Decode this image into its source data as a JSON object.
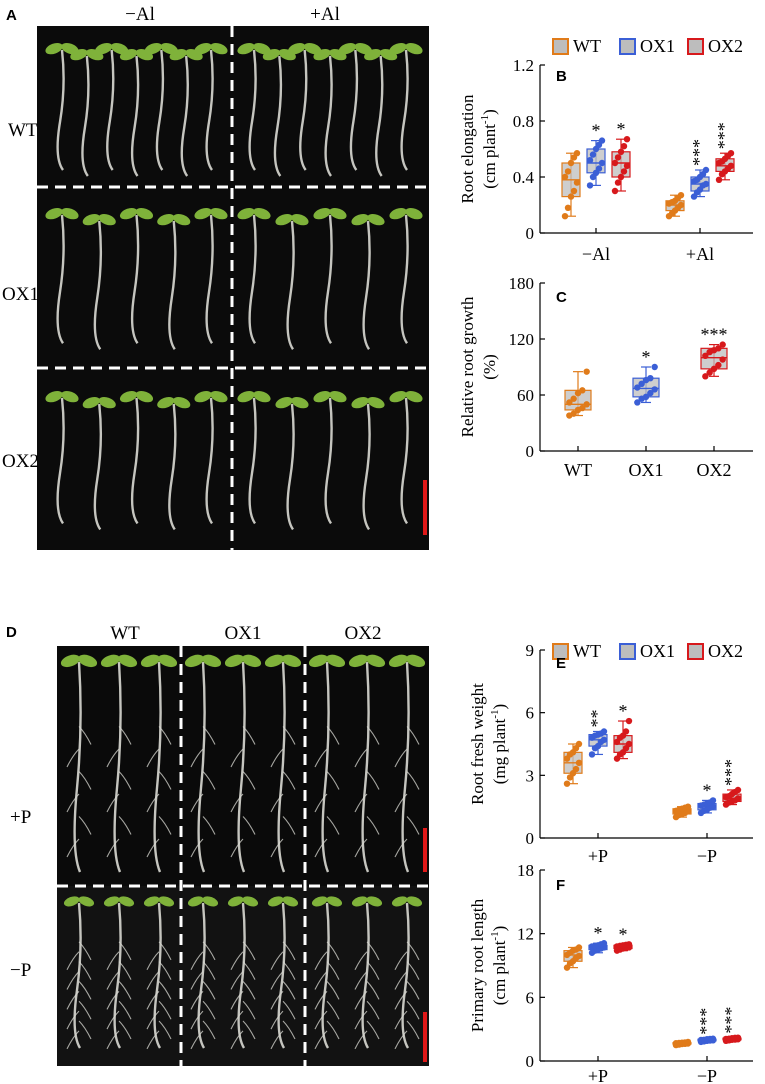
{
  "figure": {
    "panel_letters": {
      "A": "A",
      "D": "D"
    },
    "photo_A": {
      "column_labels": [
        "−Al",
        "+Al"
      ],
      "row_labels": [
        "WT",
        "OX1",
        "OX2"
      ]
    },
    "photo_D": {
      "column_labels": [
        "WT",
        "OX1",
        "OX2"
      ],
      "row_labels": [
        "+P",
        "−P"
      ]
    },
    "legend": {
      "entries": [
        {
          "name": "WT",
          "color": "#e07b1a"
        },
        {
          "name": "OX1",
          "color": "#3b5fd6"
        },
        {
          "name": "OX2",
          "color": "#d7191c"
        }
      ]
    },
    "colors": {
      "photo_bg": "#0b0b0b",
      "seedling_leaf": "#7fb23a",
      "root": "#d9d9d3",
      "scale_bar": "#e01818",
      "box_fill": "#bdbdbd"
    }
  },
  "chart_data": [
    {
      "id": "B",
      "type": "box",
      "letter": "B",
      "ylabel_lines": [
        "Root elongation",
        "(cm plant",
        "-1",
        ")"
      ],
      "ylim": [
        0,
        1.2
      ],
      "yticks": [
        "0",
        "0.4",
        "0.8",
        "1.2"
      ],
      "yticks_values": [
        0,
        0.4,
        0.8,
        1.2
      ],
      "categories": [
        "−Al",
        "+Al"
      ],
      "series": [
        {
          "name": "WT",
          "groups": [
            {
              "min": 0.12,
              "q1": 0.26,
              "med": 0.38,
              "q3": 0.5,
              "max": 0.57,
              "points": [
                0.12,
                0.18,
                0.26,
                0.3,
                0.36,
                0.4,
                0.44,
                0.5,
                0.54,
                0.57
              ],
              "sig": ""
            },
            {
              "min": 0.12,
              "q1": 0.16,
              "med": 0.2,
              "q3": 0.23,
              "max": 0.27,
              "points": [
                0.12,
                0.14,
                0.16,
                0.18,
                0.2,
                0.21,
                0.22,
                0.23,
                0.25,
                0.27
              ],
              "sig": ""
            }
          ]
        },
        {
          "name": "OX1",
          "groups": [
            {
              "min": 0.34,
              "q1": 0.43,
              "med": 0.5,
              "q3": 0.6,
              "max": 0.66,
              "points": [
                0.34,
                0.4,
                0.43,
                0.46,
                0.5,
                0.52,
                0.56,
                0.6,
                0.63,
                0.66
              ],
              "sig": "*"
            },
            {
              "min": 0.26,
              "q1": 0.3,
              "med": 0.35,
              "q3": 0.4,
              "max": 0.45,
              "points": [
                0.26,
                0.29,
                0.31,
                0.34,
                0.35,
                0.37,
                0.38,
                0.4,
                0.42,
                0.45
              ],
              "sig": "***"
            }
          ]
        },
        {
          "name": "OX2",
          "groups": [
            {
              "min": 0.3,
              "q1": 0.4,
              "med": 0.5,
              "q3": 0.58,
              "max": 0.67,
              "points": [
                0.3,
                0.36,
                0.4,
                0.44,
                0.48,
                0.5,
                0.54,
                0.58,
                0.62,
                0.67
              ],
              "sig": "*"
            },
            {
              "min": 0.38,
              "q1": 0.44,
              "med": 0.48,
              "q3": 0.53,
              "max": 0.57,
              "points": [
                0.38,
                0.42,
                0.44,
                0.46,
                0.48,
                0.5,
                0.51,
                0.53,
                0.55,
                0.57
              ],
              "sig": "***"
            }
          ]
        }
      ]
    },
    {
      "id": "C",
      "type": "box",
      "letter": "C",
      "ylabel_lines": [
        "Relative root growth",
        "(%)"
      ],
      "ylim": [
        0,
        180
      ],
      "yticks": [
        "0",
        "60",
        "120",
        "180"
      ],
      "yticks_values": [
        0,
        60,
        120,
        180
      ],
      "categories": [
        "WT",
        "OX1",
        "OX2"
      ],
      "single_series_per_category": true,
      "series": [
        {
          "name": "WT",
          "groups": [
            {
              "min": 38,
              "q1": 44,
              "med": 50,
              "q3": 65,
              "max": 85,
              "points": [
                38,
                40,
                44,
                46,
                50,
                52,
                56,
                62,
                65,
                85
              ],
              "sig": ""
            }
          ]
        },
        {
          "name": "OX1",
          "groups": [
            {
              "min": 52,
              "q1": 58,
              "med": 67,
              "q3": 78,
              "max": 90,
              "points": [
                52,
                56,
                58,
                62,
                66,
                68,
                72,
                76,
                78,
                90
              ],
              "sig": "*"
            }
          ]
        },
        {
          "name": "OX2",
          "groups": [
            {
              "min": 80,
              "q1": 88,
              "med": 100,
              "q3": 110,
              "max": 114,
              "points": [
                80,
                84,
                88,
                92,
                98,
                102,
                106,
                108,
                110,
                114
              ],
              "sig": "***"
            }
          ]
        }
      ]
    },
    {
      "id": "E",
      "type": "box",
      "letter": "E",
      "ylabel_lines": [
        "Root fresh weight",
        "(mg plant",
        "-1",
        ")"
      ],
      "ylim": [
        0,
        9
      ],
      "yticks": [
        "0",
        "3",
        "6",
        "9"
      ],
      "yticks_values": [
        0,
        3,
        6,
        9
      ],
      "categories": [
        "+P",
        "−P"
      ],
      "series": [
        {
          "name": "WT",
          "groups": [
            {
              "min": 2.6,
              "q1": 3.1,
              "med": 3.6,
              "q3": 4.1,
              "max": 4.5,
              "points": [
                2.6,
                2.9,
                3.1,
                3.3,
                3.6,
                3.8,
                4.0,
                4.1,
                4.3,
                4.5
              ],
              "sig": ""
            },
            {
              "min": 1.0,
              "q1": 1.15,
              "med": 1.3,
              "q3": 1.4,
              "max": 1.5,
              "points": [
                1.0,
                1.1,
                1.15,
                1.2,
                1.3,
                1.3,
                1.35,
                1.4,
                1.45,
                1.5
              ],
              "sig": ""
            }
          ]
        },
        {
          "name": "OX1",
          "groups": [
            {
              "min": 4.0,
              "q1": 4.4,
              "med": 4.7,
              "q3": 4.95,
              "max": 5.1,
              "points": [
                4.0,
                4.3,
                4.4,
                4.6,
                4.7,
                4.8,
                4.9,
                4.95,
                5.0,
                5.1
              ],
              "sig": "**"
            },
            {
              "min": 1.2,
              "q1": 1.35,
              "med": 1.5,
              "q3": 1.65,
              "max": 1.8,
              "points": [
                1.2,
                1.3,
                1.35,
                1.45,
                1.5,
                1.55,
                1.6,
                1.65,
                1.7,
                1.8
              ],
              "sig": "*"
            }
          ]
        },
        {
          "name": "OX2",
          "groups": [
            {
              "min": 3.8,
              "q1": 4.1,
              "med": 4.5,
              "q3": 4.9,
              "max": 5.6,
              "points": [
                3.8,
                4.0,
                4.1,
                4.3,
                4.5,
                4.6,
                4.8,
                4.9,
                5.1,
                5.6
              ],
              "sig": "*"
            },
            {
              "min": 1.6,
              "q1": 1.75,
              "med": 1.9,
              "q3": 2.1,
              "max": 2.3,
              "points": [
                1.6,
                1.7,
                1.75,
                1.8,
                1.9,
                1.95,
                2.0,
                2.1,
                2.2,
                2.3
              ],
              "sig": "***"
            }
          ]
        }
      ]
    },
    {
      "id": "F",
      "type": "box",
      "letter": "F",
      "ylabel_lines": [
        "Primary root length",
        "(cm plant",
        "-1",
        ")"
      ],
      "ylim": [
        0,
        18
      ],
      "yticks": [
        "0",
        "6",
        "12",
        "18"
      ],
      "yticks_values": [
        0,
        6,
        12,
        18
      ],
      "categories": [
        "+P",
        "−P"
      ],
      "series": [
        {
          "name": "WT",
          "groups": [
            {
              "min": 8.8,
              "q1": 9.4,
              "med": 10.0,
              "q3": 10.4,
              "max": 10.7,
              "points": [
                8.8,
                9.2,
                9.4,
                9.7,
                9.9,
                10.0,
                10.2,
                10.4,
                10.5,
                10.7
              ],
              "sig": ""
            },
            {
              "min": 1.5,
              "q1": 1.6,
              "med": 1.65,
              "q3": 1.72,
              "max": 1.8,
              "points": [
                1.5,
                1.55,
                1.6,
                1.62,
                1.65,
                1.68,
                1.7,
                1.72,
                1.75,
                1.8
              ],
              "sig": ""
            }
          ]
        },
        {
          "name": "OX1",
          "groups": [
            {
              "min": 10.2,
              "q1": 10.5,
              "med": 10.7,
              "q3": 10.9,
              "max": 11.1,
              "points": [
                10.2,
                10.4,
                10.5,
                10.6,
                10.7,
                10.8,
                10.85,
                10.9,
                11.0,
                11.1
              ],
              "sig": "*"
            },
            {
              "min": 1.8,
              "q1": 1.9,
              "med": 1.95,
              "q3": 2.05,
              "max": 2.1,
              "points": [
                1.8,
                1.85,
                1.9,
                1.93,
                1.95,
                1.98,
                2.0,
                2.05,
                2.08,
                2.1
              ],
              "sig": "***"
            }
          ]
        },
        {
          "name": "OX2",
          "groups": [
            {
              "min": 10.4,
              "q1": 10.6,
              "med": 10.75,
              "q3": 10.9,
              "max": 11.0,
              "points": [
                10.4,
                10.5,
                10.6,
                10.65,
                10.7,
                10.8,
                10.85,
                10.9,
                10.95,
                11.0
              ],
              "sig": "*"
            },
            {
              "min": 1.9,
              "q1": 2.0,
              "med": 2.05,
              "q3": 2.15,
              "max": 2.2,
              "points": [
                1.9,
                1.95,
                2.0,
                2.02,
                2.05,
                2.08,
                2.1,
                2.15,
                2.18,
                2.2
              ],
              "sig": "***"
            }
          ]
        }
      ]
    }
  ]
}
